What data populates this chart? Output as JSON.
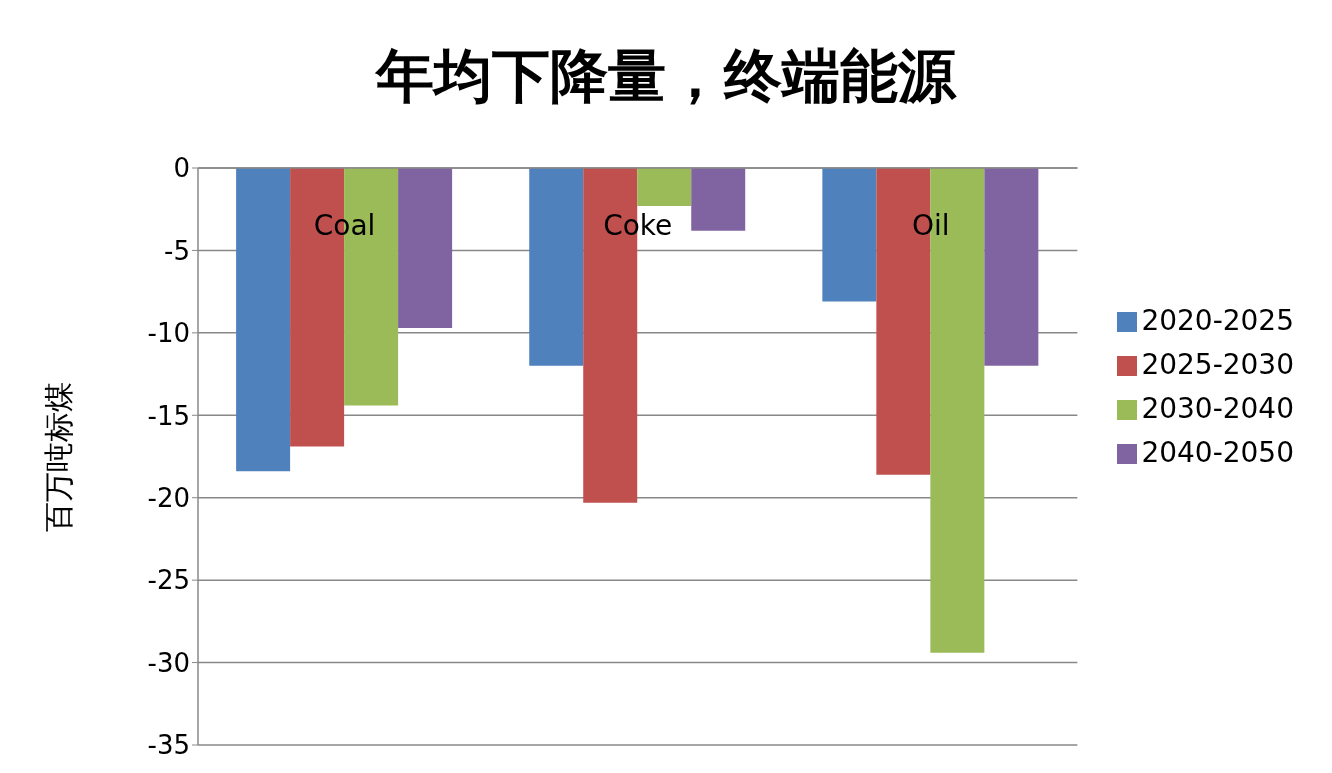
{
  "chart_data": {
    "type": "bar",
    "title": "年均下降量，终端能源",
    "ylabel": "百万吨标煤",
    "categories": [
      "Coal",
      "Coke",
      "Oil"
    ],
    "series": [
      {
        "name": "2020-2025",
        "color": "#4f81bd",
        "values": [
          -18.4,
          -12.0,
          -8.1
        ]
      },
      {
        "name": "2025-2030",
        "color": "#c0504d",
        "values": [
          -16.9,
          -20.3,
          -18.6
        ]
      },
      {
        "name": "2030-2040",
        "color": "#9bbb59",
        "values": [
          -14.4,
          -2.3,
          -29.4
        ]
      },
      {
        "name": "2040-2050",
        "color": "#8064a2",
        "values": [
          -9.7,
          -3.8,
          -12.0
        ]
      }
    ],
    "ylim": [
      -35,
      0
    ],
    "yticks": [
      -35,
      -30,
      -25,
      -20,
      -15,
      -10,
      -5,
      0
    ],
    "grid": "y",
    "legend": "right"
  }
}
